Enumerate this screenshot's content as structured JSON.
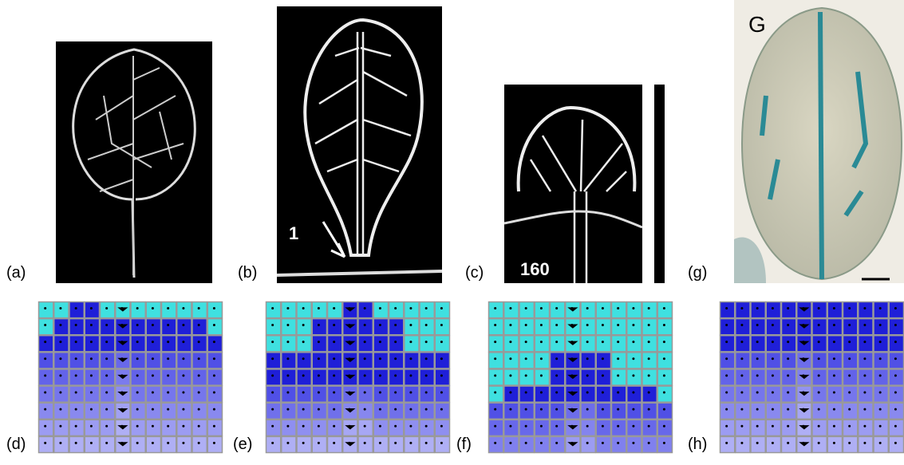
{
  "photos": [
    {
      "label": "(a)"
    },
    {
      "label": "(b)",
      "inset": "1"
    },
    {
      "label": "(c)",
      "inset": "160"
    },
    {
      "label": "(g)",
      "inset": "G"
    }
  ],
  "grids": [
    {
      "label": "(d)"
    },
    {
      "label": "(e)"
    },
    {
      "label": "(f)"
    },
    {
      "label": "(h)"
    }
  ]
}
